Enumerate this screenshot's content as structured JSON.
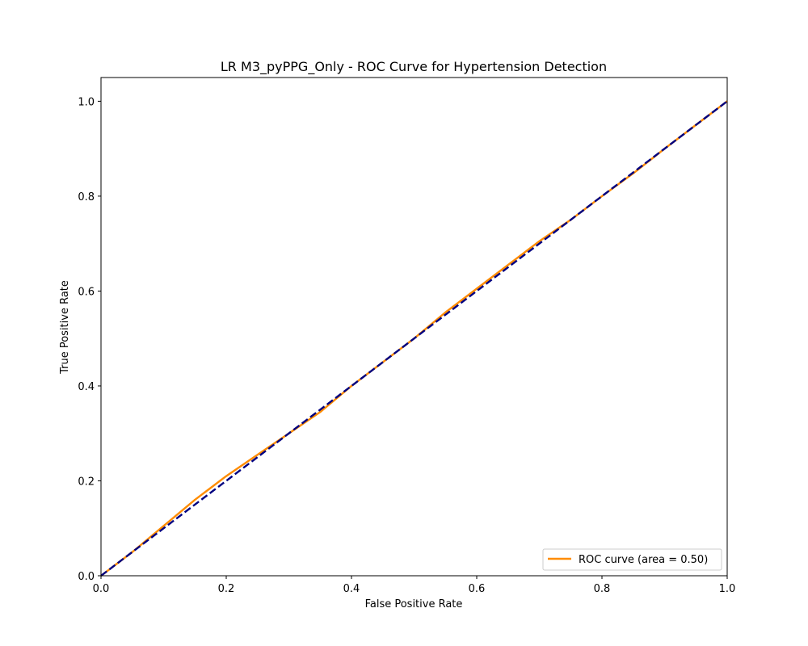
{
  "chart_data": {
    "type": "line",
    "title": "LR M3_pyPPG_Only - ROC Curve for Hypertension Detection",
    "xlabel": "False Positive Rate",
    "ylabel": "True Positive Rate",
    "xlim": [
      0.0,
      1.0
    ],
    "ylim": [
      0.0,
      1.05
    ],
    "xticks": [
      "0.0",
      "0.2",
      "0.4",
      "0.6",
      "0.8",
      "1.0"
    ],
    "yticks": [
      "0.0",
      "0.2",
      "0.4",
      "0.6",
      "0.8",
      "1.0"
    ],
    "grid": false,
    "legend_position": "lower-right",
    "series": [
      {
        "name": "ROC curve (area = 0.50)",
        "color": "#ff8c00",
        "style": "solid",
        "x": [
          0.0,
          0.05,
          0.1,
          0.15,
          0.2,
          0.25,
          0.3,
          0.35,
          0.4,
          0.45,
          0.5,
          0.55,
          0.6,
          0.65,
          0.7,
          0.75,
          0.8,
          0.85,
          0.9,
          0.95,
          1.0
        ],
        "y": [
          0.0,
          0.05,
          0.105,
          0.16,
          0.21,
          0.255,
          0.3,
          0.345,
          0.4,
          0.45,
          0.5,
          0.555,
          0.605,
          0.655,
          0.705,
          0.75,
          0.8,
          0.848,
          0.9,
          0.95,
          1.0
        ]
      },
      {
        "color": "#000080",
        "style": "dashed",
        "x": [
          0.0,
          1.0
        ],
        "y": [
          0.0,
          1.0
        ]
      }
    ]
  }
}
